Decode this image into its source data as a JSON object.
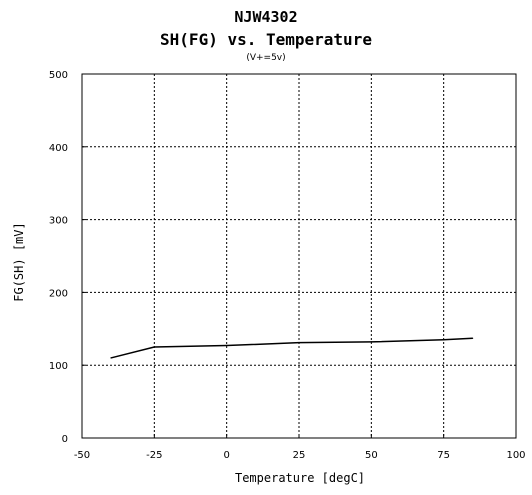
{
  "chart_data": {
    "type": "line",
    "title": "NJW4302",
    "subtitle": "SH(FG) vs. Temperature",
    "condition": "(V+=5v)",
    "xlabel": "Temperature [degC]",
    "ylabel": "FG(SH) [mV]",
    "xlim": [
      -50,
      100
    ],
    "ylim": [
      0,
      500
    ],
    "xticks": [
      -50,
      -25,
      0,
      25,
      50,
      75,
      100
    ],
    "yticks": [
      0,
      100,
      200,
      300,
      400,
      500
    ],
    "grid": true,
    "series": [
      {
        "color": "#000000",
        "x": [
          -40,
          -25,
          0,
          25,
          50,
          75,
          85
        ],
        "y": [
          110,
          125,
          127,
          131,
          132,
          135,
          137
        ]
      }
    ]
  }
}
